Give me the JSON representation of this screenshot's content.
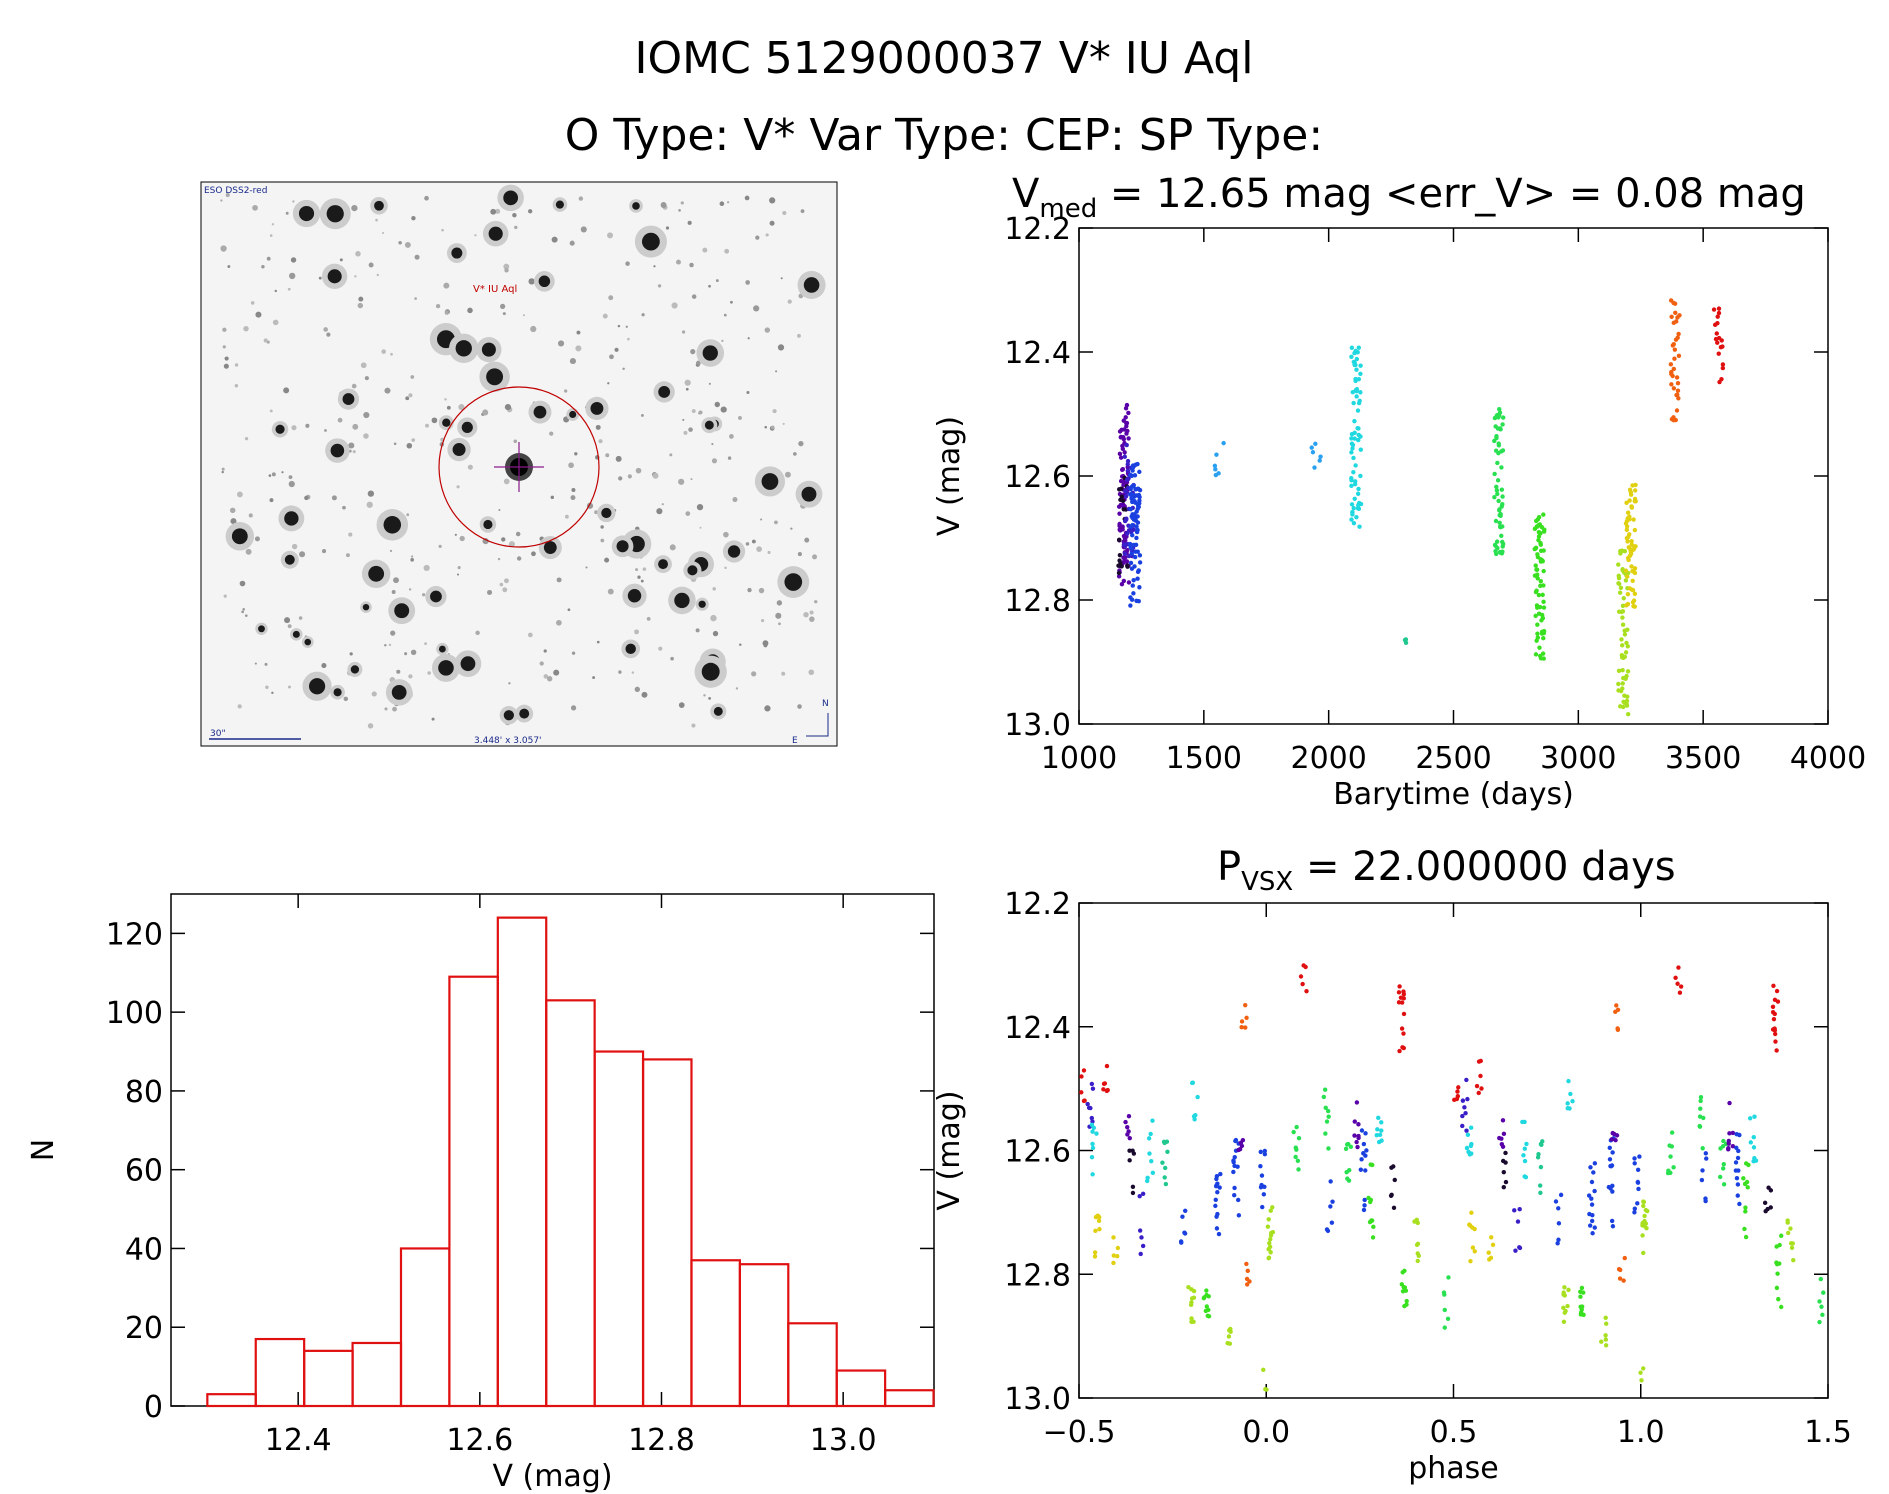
{
  "header": {
    "title_line1": "IOMC 5129000037     V* IU Aql",
    "title_line2": "O Type: V*  Var Type: CEP:  SP Type:"
  },
  "image_panel": {
    "corner_label": "ESO DSS2-red",
    "target_label": "V* IU Aql",
    "scale_label": "30\"",
    "size_label": "3.448' x 3.057'",
    "compass_n": "N",
    "compass_e": "E",
    "marker_color": "#c00000"
  },
  "chart_data": [
    {
      "id": "lightcurve",
      "type": "scatter",
      "title_main": "V",
      "title_sub": "med",
      "title_rest": " = 12.65 mag <err_V> = 0.08 mag",
      "xlabel": "Barytime (days)",
      "ylabel": "V (mag)",
      "xlim": [
        1000,
        4000
      ],
      "ylim": [
        13.0,
        12.2
      ],
      "xticks": [
        1000,
        1500,
        2000,
        2500,
        3000,
        3500,
        4000
      ],
      "yticks": [
        12.2,
        12.4,
        12.6,
        12.8,
        13.0
      ],
      "x_tick_labels": [
        "1000",
        "1500",
        "2000",
        "2500",
        "3000",
        "3500",
        "4000"
      ],
      "y_tick_labels": [
        "12.2",
        "12.4",
        "12.6",
        "12.8",
        "13.0"
      ],
      "clusters": [
        {
          "x": 1180,
          "ymin": 12.48,
          "ymax": 12.78,
          "n": 90,
          "color": "#5a00a8"
        },
        {
          "x": 1178,
          "ymin": 12.6,
          "ymax": 12.76,
          "n": 20,
          "color": "#1a0a2e"
        },
        {
          "x": 1200,
          "ymin": 12.55,
          "ymax": 12.73,
          "n": 40,
          "color": "#3a1ec8"
        },
        {
          "x": 1225,
          "ymin": 12.58,
          "ymax": 12.81,
          "n": 80,
          "color": "#1a40e0"
        },
        {
          "x": 1560,
          "ymin": 12.54,
          "ymax": 12.6,
          "n": 6,
          "color": "#2aa0f0"
        },
        {
          "x": 1950,
          "ymin": 12.54,
          "ymax": 12.59,
          "n": 6,
          "color": "#2aa0f0"
        },
        {
          "x": 2110,
          "ymin": 12.39,
          "ymax": 12.69,
          "n": 70,
          "color": "#20d8e0"
        },
        {
          "x": 2310,
          "ymin": 12.86,
          "ymax": 12.87,
          "n": 3,
          "color": "#20c890"
        },
        {
          "x": 2680,
          "ymin": 12.49,
          "ymax": 12.73,
          "n": 60,
          "color": "#28e050"
        },
        {
          "x": 2845,
          "ymin": 12.66,
          "ymax": 12.9,
          "n": 70,
          "color": "#38e020"
        },
        {
          "x": 3180,
          "ymin": 12.72,
          "ymax": 12.99,
          "n": 60,
          "color": "#a8e020"
        },
        {
          "x": 3210,
          "ymin": 12.61,
          "ymax": 12.82,
          "n": 60,
          "color": "#e0d010"
        },
        {
          "x": 3390,
          "ymin": 12.3,
          "ymax": 12.51,
          "n": 35,
          "color": "#f06010"
        },
        {
          "x": 3560,
          "ymin": 12.33,
          "ymax": 12.45,
          "n": 18,
          "color": "#e01010"
        }
      ]
    },
    {
      "id": "histogram",
      "type": "bar",
      "xlabel": "V (mag)",
      "ylabel": "N",
      "xlim": [
        12.26,
        13.1
      ],
      "ylim": [
        0,
        130
      ],
      "bin_width": 0.0533,
      "bin_start": 12.3,
      "values": [
        3,
        17,
        14,
        16,
        40,
        109,
        124,
        103,
        90,
        88,
        37,
        36,
        21,
        9,
        4
      ],
      "bar_color": "#e01010",
      "xticks": [
        12.4,
        12.6,
        12.8,
        13.0
      ],
      "yticks": [
        0,
        20,
        40,
        60,
        80,
        100,
        120
      ],
      "x_tick_labels": [
        "12.4",
        "12.6",
        "12.8",
        "13.0"
      ],
      "y_tick_labels": [
        "0",
        "20",
        "40",
        "60",
        "80",
        "100",
        "120"
      ]
    },
    {
      "id": "phased",
      "type": "scatter",
      "title_main": "P",
      "title_sub": "VSX",
      "title_rest": " = 22.000000 days",
      "xlabel": "phase",
      "ylabel": "V (mag)",
      "xlim": [
        -0.5,
        1.5
      ],
      "ylim": [
        13.0,
        12.2
      ],
      "xticks": [
        -0.5,
        0.0,
        0.5,
        1.0,
        1.5
      ],
      "yticks": [
        12.2,
        12.4,
        12.6,
        12.8,
        13.0
      ],
      "x_tick_labels": [
        "−0.5",
        "0.0",
        "0.5",
        "1.0",
        "1.5"
      ],
      "y_tick_labels": [
        "12.2",
        "12.4",
        "12.6",
        "12.8",
        "13.0"
      ],
      "clusters": [
        {
          "x": -0.49,
          "ymin": 12.47,
          "ymax": 12.52,
          "n": 5,
          "color": "#e01010"
        },
        {
          "x": -0.43,
          "ymin": 12.45,
          "ymax": 12.52,
          "n": 6,
          "color": "#e01010"
        },
        {
          "x": -0.47,
          "ymin": 12.48,
          "ymax": 12.57,
          "n": 8,
          "color": "#3a1ec8"
        },
        {
          "x": -0.46,
          "ymin": 12.55,
          "ymax": 12.64,
          "n": 8,
          "color": "#20d8e0"
        },
        {
          "x": -0.45,
          "ymin": 12.7,
          "ymax": 12.78,
          "n": 8,
          "color": "#e0d010"
        },
        {
          "x": -0.4,
          "ymin": 12.74,
          "ymax": 12.79,
          "n": 5,
          "color": "#e0d010"
        },
        {
          "x": -0.37,
          "ymin": 12.54,
          "ymax": 12.6,
          "n": 6,
          "color": "#5a00a8"
        },
        {
          "x": -0.36,
          "ymin": 12.6,
          "ymax": 12.67,
          "n": 6,
          "color": "#1a0a2e"
        },
        {
          "x": -0.33,
          "ymin": 12.66,
          "ymax": 12.77,
          "n": 6,
          "color": "#3a1ec8"
        },
        {
          "x": -0.31,
          "ymin": 12.55,
          "ymax": 12.65,
          "n": 8,
          "color": "#20d8e0"
        },
        {
          "x": -0.27,
          "ymin": 12.58,
          "ymax": 12.67,
          "n": 8,
          "color": "#20c890"
        },
        {
          "x": -0.22,
          "ymin": 12.67,
          "ymax": 12.75,
          "n": 6,
          "color": "#1a40e0"
        },
        {
          "x": -0.19,
          "ymin": 12.48,
          "ymax": 12.55,
          "n": 6,
          "color": "#20d8e0"
        },
        {
          "x": -0.2,
          "ymin": 12.82,
          "ymax": 12.88,
          "n": 10,
          "color": "#a8e020"
        },
        {
          "x": -0.16,
          "ymin": 12.82,
          "ymax": 12.88,
          "n": 10,
          "color": "#38e020"
        },
        {
          "x": -0.13,
          "ymin": 12.62,
          "ymax": 12.74,
          "n": 14,
          "color": "#1a40e0"
        },
        {
          "x": -0.1,
          "ymin": 12.87,
          "ymax": 12.92,
          "n": 6,
          "color": "#a8e020"
        },
        {
          "x": -0.08,
          "ymin": 12.58,
          "ymax": 12.74,
          "n": 14,
          "color": "#1a40e0"
        },
        {
          "x": -0.07,
          "ymin": 12.57,
          "ymax": 12.6,
          "n": 5,
          "color": "#5a00a8"
        },
        {
          "x": -0.06,
          "ymin": 12.36,
          "ymax": 12.41,
          "n": 5,
          "color": "#f06010"
        },
        {
          "x": -0.05,
          "ymin": 12.76,
          "ymax": 12.82,
          "n": 5,
          "color": "#f06010"
        },
        {
          "x": -0.01,
          "ymin": 12.6,
          "ymax": 12.7,
          "n": 10,
          "color": "#1a40e0"
        },
        {
          "x": 0.01,
          "ymin": 12.68,
          "ymax": 12.78,
          "n": 14,
          "color": "#a8e020"
        },
        {
          "x": 0.0,
          "ymin": 12.95,
          "ymax": 12.99,
          "n": 3,
          "color": "#a8e020"
        },
        {
          "x": 0.1,
          "ymin": 12.3,
          "ymax": 12.35,
          "n": 5,
          "color": "#e01010"
        },
        {
          "x": 0.08,
          "ymin": 12.56,
          "ymax": 12.64,
          "n": 8,
          "color": "#28e050"
        },
        {
          "x": 0.16,
          "ymin": 12.5,
          "ymax": 12.6,
          "n": 8,
          "color": "#28e050"
        },
        {
          "x": 0.17,
          "ymin": 12.6,
          "ymax": 12.73,
          "n": 6,
          "color": "#1a40e0"
        },
        {
          "x": 0.22,
          "ymin": 12.58,
          "ymax": 12.66,
          "n": 8,
          "color": "#28e050"
        },
        {
          "x": 0.24,
          "ymin": 12.52,
          "ymax": 12.6,
          "n": 8,
          "color": "#5a00a8"
        },
        {
          "x": 0.26,
          "ymin": 12.56,
          "ymax": 12.7,
          "n": 12,
          "color": "#1a40e0"
        },
        {
          "x": 0.28,
          "ymin": 12.62,
          "ymax": 12.76,
          "n": 10,
          "color": "#38e020"
        },
        {
          "x": 0.3,
          "ymin": 12.54,
          "ymax": 12.62,
          "n": 8,
          "color": "#20d8e0"
        },
        {
          "x": 0.34,
          "ymin": 12.62,
          "ymax": 12.7,
          "n": 6,
          "color": "#1a0a2e"
        },
        {
          "x": 0.36,
          "ymin": 12.33,
          "ymax": 12.44,
          "n": 14,
          "color": "#e01010"
        },
        {
          "x": 0.37,
          "ymin": 12.73,
          "ymax": 12.86,
          "n": 10,
          "color": "#38e020"
        },
        {
          "x": 0.4,
          "ymin": 12.71,
          "ymax": 12.78,
          "n": 8,
          "color": "#a8e020"
        },
        {
          "x": 0.48,
          "ymin": 12.8,
          "ymax": 12.89,
          "n": 6,
          "color": "#28e050"
        }
      ]
    }
  ]
}
